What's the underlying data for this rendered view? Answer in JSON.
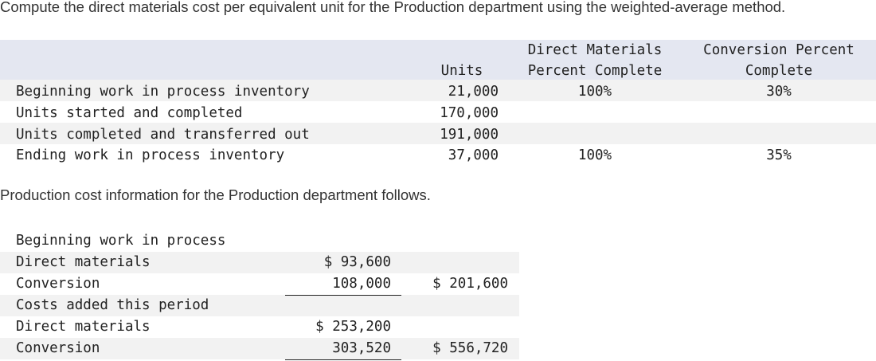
{
  "question": "Compute the direct materials cost per equivalent unit for the Production department using the weighted-average method.",
  "units_table": {
    "headers": {
      "units": "Units",
      "dm_line1": "Direct Materials",
      "dm_line2": "Percent Complete",
      "conv_line1": "Conversion Percent",
      "conv_line2": "Complete"
    },
    "rows": [
      {
        "label": "Beginning work in process inventory",
        "units": "21,000",
        "dm": "100%",
        "conv": "30%"
      },
      {
        "label": "Units started and completed",
        "units": "170,000",
        "dm": "",
        "conv": ""
      },
      {
        "label": "Units completed and transferred out",
        "units": "191,000",
        "dm": "",
        "conv": ""
      },
      {
        "label": "Ending work in process inventory",
        "units": "37,000",
        "dm": "100%",
        "conv": "35%"
      }
    ]
  },
  "cost_intro": "Production cost information for the Production department follows.",
  "cost_table": {
    "rows": [
      {
        "label": "Beginning work in process",
        "amount": "",
        "total": ""
      },
      {
        "label": "Direct materials",
        "amount": "$ 93,600",
        "total": ""
      },
      {
        "label": "Conversion",
        "amount": "108,000",
        "total": "$ 201,600"
      },
      {
        "label": "Costs added this period",
        "amount": "",
        "total": ""
      },
      {
        "label": "Direct materials",
        "amount": "$ 253,200",
        "total": ""
      },
      {
        "label": "Conversion",
        "amount": "303,520",
        "total": "$ 556,720"
      }
    ]
  }
}
